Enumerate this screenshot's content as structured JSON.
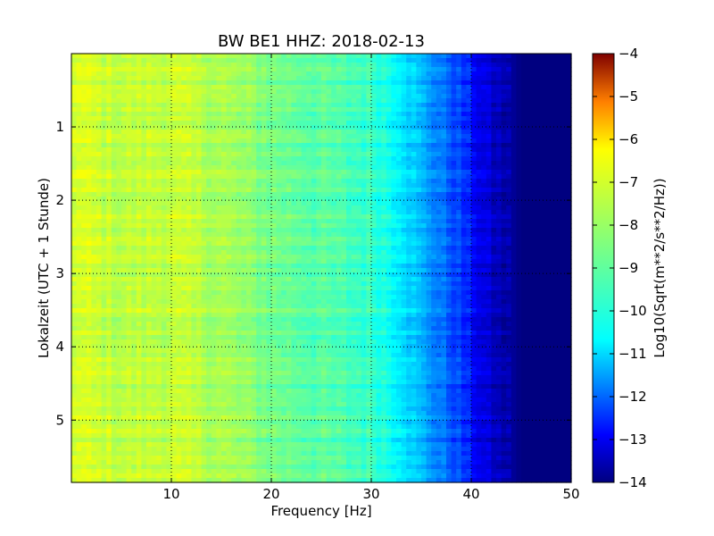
{
  "chart_data": {
    "type": "heatmap",
    "title": "BW BE1 HHZ: 2018-02-13",
    "xlabel": "Frequency [Hz]",
    "ylabel": "Lokalzeit (UTC + 1 Stunde)",
    "xlim": [
      0,
      50
    ],
    "ylim": [
      5.85,
      0.0
    ],
    "x_ticks": [
      10,
      20,
      30,
      40,
      50
    ],
    "y_ticks": [
      1,
      2,
      3,
      4,
      5
    ],
    "grid": true,
    "colormap": "jet",
    "colorbar": {
      "label": "Log10(Sqrt(m**2/s**2/Hz))",
      "range": [
        -14,
        -4
      ],
      "ticks": [
        -4,
        -5,
        -6,
        -7,
        -8,
        -9,
        -10,
        -11,
        -12,
        -13,
        -14
      ]
    },
    "frequency_profile": {
      "frequency_hz": [
        0,
        5,
        10,
        15,
        20,
        25,
        28,
        30,
        31,
        32,
        33,
        34,
        35,
        36,
        37,
        38,
        39,
        40,
        41,
        42,
        43,
        44,
        45,
        50
      ],
      "log_amplitude": [
        -8.1,
        -8.4,
        -8.3,
        -8.6,
        -9.1,
        -9.4,
        -9.6,
        -9.7,
        -9.9,
        -10.1,
        -10.3,
        -10.7,
        -11.0,
        -11.3,
        -11.6,
        -11.9,
        -12.2,
        -12.6,
        -13.0,
        -13.3,
        -13.5,
        -13.7,
        -14.0,
        -14.0
      ]
    }
  }
}
